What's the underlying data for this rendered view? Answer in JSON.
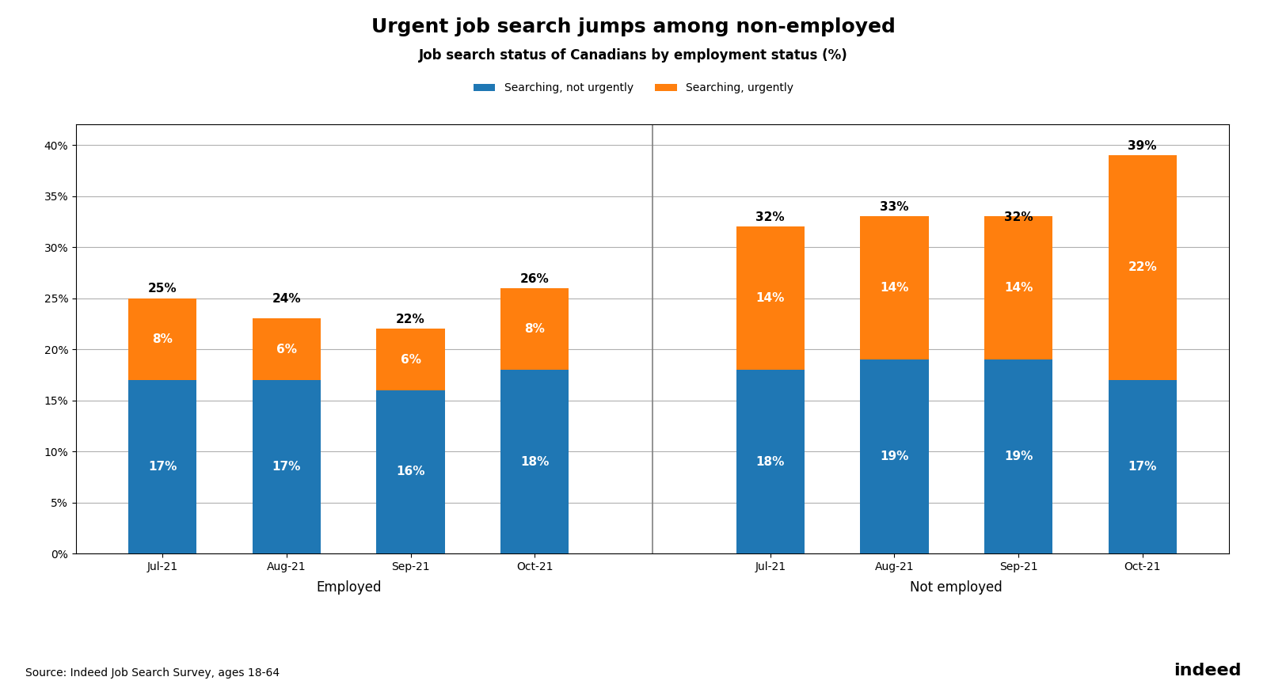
{
  "chart_data": {
    "type": "bar",
    "stacked": true,
    "title": "Urgent job search jumps among non-employed",
    "subtitle": "Job search status of Canadians by employment status (%)",
    "categories": [
      "Jul-21",
      "Aug-21",
      "Sep-21",
      "Oct-21",
      "Jul-21",
      "Aug-21",
      "Sep-21",
      "Oct-21"
    ],
    "category_groups": [
      "Employed",
      "Employed",
      "Employed",
      "Employed",
      "Not employed",
      "Not employed",
      "Not employed",
      "Not employed"
    ],
    "series": [
      {
        "name": "Searching, not urgently",
        "values": [
          17,
          17,
          16,
          18,
          18,
          19,
          19,
          17
        ],
        "value_labels": [
          "17%",
          "17%",
          "16%",
          "18%",
          "18%",
          "19%",
          "19%",
          "17%"
        ]
      },
      {
        "name": "Searching, urgently",
        "values": [
          8,
          6,
          6,
          8,
          14,
          14,
          14,
          22
        ],
        "value_labels": [
          "8%",
          "6%",
          "6%",
          "8%",
          "14%",
          "14%",
          "14%",
          "22%"
        ]
      }
    ],
    "totals": [
      25,
      24,
      22,
      26,
      32,
      33,
      32,
      39
    ],
    "total_labels": [
      "25%",
      "24%",
      "22%",
      "26%",
      "32%",
      "33%",
      "32%",
      "39%"
    ],
    "data_labels": true,
    "ylim": [
      0,
      42
    ],
    "yticks": [
      {
        "value": 0,
        "label": "0%"
      },
      {
        "value": 5,
        "label": "5%"
      },
      {
        "value": 10,
        "label": "10%"
      },
      {
        "value": 15,
        "label": "15%"
      },
      {
        "value": 20,
        "label": "20%"
      },
      {
        "value": 25,
        "label": "25%"
      },
      {
        "value": 30,
        "label": "30%"
      },
      {
        "value": 35,
        "label": "35%"
      },
      {
        "value": 40,
        "label": "40%"
      }
    ],
    "grid": true,
    "legend": "upper center",
    "annotations": [
      "Source: Indeed Job Search Survey, ages 18-64",
      "indeed"
    ]
  }
}
